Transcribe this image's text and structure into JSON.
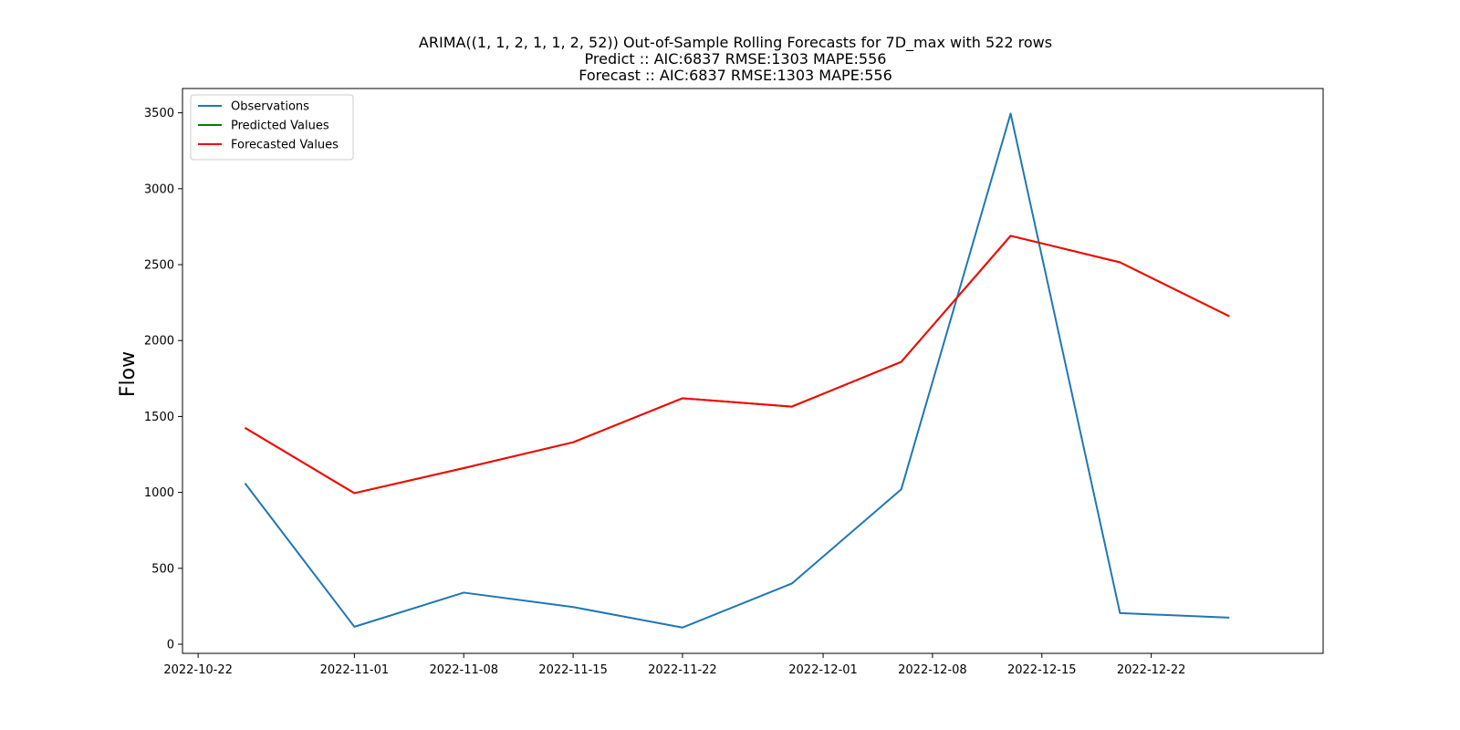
{
  "chart_data": {
    "type": "line",
    "title_lines": [
      "ARIMA((1, 1, 2, 1, 1, 2, 52)) Out-of-Sample Rolling Forecasts for 7D_max with 522 rows",
      "Predict :: AIC:6837 RMSE:1303 MAPE:556",
      "Forecast :: AIC:6837 RMSE:1303 MAPE:556"
    ],
    "xlabel": "",
    "ylabel": "Flow",
    "x_range": [
      "2022-10-21",
      "2023-01-02"
    ],
    "ylim": [
      -60,
      3660
    ],
    "x_ticks": [
      "2022-10-22",
      "2022-11-01",
      "2022-11-08",
      "2022-11-15",
      "2022-11-22",
      "2022-12-01",
      "2022-12-08",
      "2022-12-15",
      "2022-12-22"
    ],
    "y_ticks": [
      0,
      500,
      1000,
      1500,
      2000,
      2500,
      3000,
      3500
    ],
    "grid": false,
    "legend_position": "top-left",
    "x": [
      "2022-10-25",
      "2022-11-01",
      "2022-11-08",
      "2022-11-15",
      "2022-11-22",
      "2022-11-29",
      "2022-12-06",
      "2022-12-13",
      "2022-12-20",
      "2022-12-27"
    ],
    "series": [
      {
        "name": "Observations",
        "color": "#1f77b4",
        "values": [
          1060,
          115,
          340,
          245,
          110,
          400,
          1020,
          3495,
          205,
          175
        ]
      },
      {
        "name": "Predicted Values",
        "color": "#008000",
        "values": [
          1425,
          995,
          1160,
          1330,
          1620,
          1565,
          1860,
          2690,
          2515,
          2160
        ]
      },
      {
        "name": "Forecasted Values",
        "color": "#ff0000",
        "values": [
          1425,
          995,
          1160,
          1330,
          1620,
          1565,
          1860,
          2690,
          2515,
          2160
        ]
      }
    ]
  }
}
